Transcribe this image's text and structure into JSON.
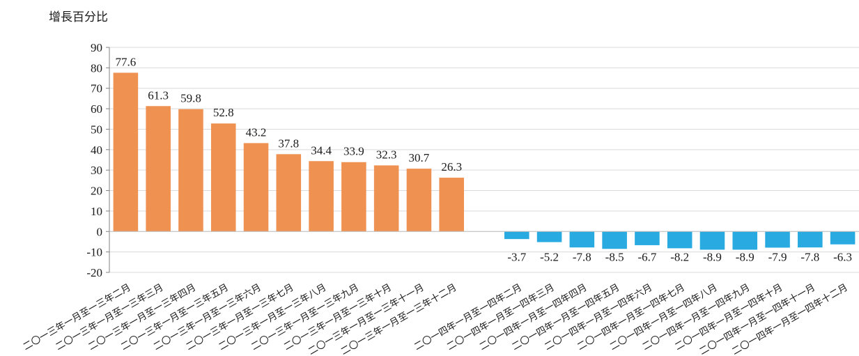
{
  "chart_data": {
    "type": "bar",
    "ylabel": "增長百分比",
    "ylim": [
      -20,
      90
    ],
    "yticks": [
      90,
      80,
      70,
      60,
      50,
      40,
      30,
      20,
      10,
      0,
      -10,
      -20
    ],
    "grid": true,
    "categories": [
      "二〇一三年一月至一三年二月",
      "二〇一三年一月至一三年三月",
      "二〇一三年一月至一三年四月",
      "二〇一三年一月至一三年五月",
      "二〇一三年一月至一三年六月",
      "二〇一三年一月至一三年七月",
      "二〇一三年一月至一三年八月",
      "二〇一三年一月至一三年九月",
      "二〇一三年一月至一三年十月",
      "二〇一三年一月至一三年十一月",
      "二〇一三年一月至一三年十二月",
      "",
      "二〇一四年一月至一四年二月",
      "二〇一四年一月至一四年三月",
      "二〇一四年一月至一四年四月",
      "二〇一四年一月至一四年五月",
      "二〇一四年一月至一四年六月",
      "二〇一四年一月至一四年七月",
      "二〇一四年一月至一四年八月",
      "二〇一四年一月至一四年九月",
      "二〇一四年一月至一四年十月",
      "二〇一四年一月至一四年十一月",
      "二〇一四年一月至一四年十二月"
    ],
    "values": [
      77.6,
      61.3,
      59.8,
      52.8,
      43.2,
      37.8,
      34.4,
      33.9,
      32.3,
      30.7,
      26.3,
      null,
      -3.7,
      -5.2,
      -7.8,
      -8.5,
      -6.7,
      -8.2,
      -8.9,
      -8.9,
      -7.9,
      -7.8,
      -6.3
    ],
    "data_labels": [
      "77.6",
      "61.3",
      "59.8",
      "52.8",
      "43.2",
      "37.8",
      "34.4",
      "33.9",
      "32.3",
      "30.7",
      "26.3",
      "",
      "-3.7",
      "-5.2",
      "-7.8",
      "-8.5",
      "-6.7",
      "-8.2",
      "-8.9",
      "-8.9",
      "-7.9",
      "-7.8",
      "-6.3"
    ],
    "colors": {
      "positive": "#EF9150",
      "negative": "#29ABE2",
      "grid": "#D9D9D9",
      "axis": "#808080"
    }
  }
}
